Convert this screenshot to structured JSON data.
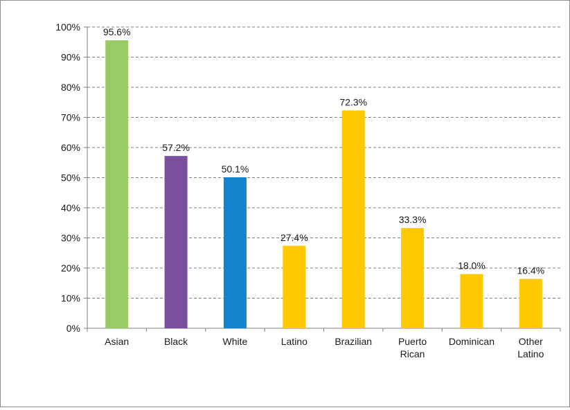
{
  "chart_data": {
    "type": "bar",
    "title": "",
    "xlabel": "",
    "ylabel": "",
    "ylim": [
      0,
      100
    ],
    "yticks": [
      0,
      10,
      20,
      30,
      40,
      50,
      60,
      70,
      80,
      90,
      100
    ],
    "ytick_format": "%",
    "grid": "horizontal dashed",
    "legend": "none",
    "categories": [
      [
        "Asian"
      ],
      [
        "Black"
      ],
      [
        "White"
      ],
      [
        "Latino"
      ],
      [
        "Brazilian"
      ],
      [
        "Puerto",
        "Rican"
      ],
      [
        "Dominican"
      ],
      [
        "Other",
        "Latino"
      ]
    ],
    "values": [
      95.6,
      57.2,
      50.1,
      27.4,
      72.3,
      33.3,
      18.0,
      16.4
    ],
    "data_labels": [
      "95.6%",
      "57.2%",
      "50.1%",
      "27.4%",
      "72.3%",
      "33.3%",
      "18.0%",
      "16.4%"
    ],
    "colors": [
      "#99cc66",
      "#7b4f9e",
      "#1485cc",
      "#ffc800",
      "#ffc800",
      "#ffc800",
      "#ffc800",
      "#ffc800"
    ]
  }
}
